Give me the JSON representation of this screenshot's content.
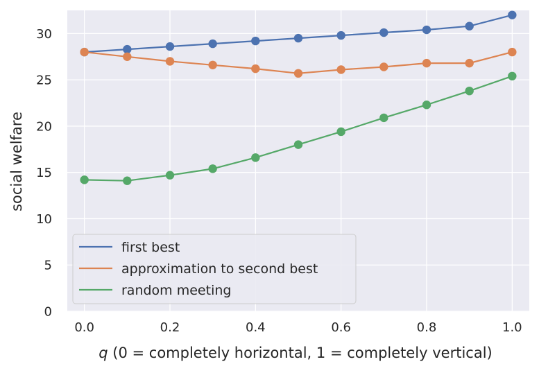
{
  "chart_data": {
    "type": "line",
    "xlabel_var": "q",
    "xlabel_rest": " (0 = completely horizontal, 1 = completely vertical)",
    "ylabel": "social welfare",
    "xlim": [
      -0.04,
      1.04
    ],
    "ylim": [
      0,
      32.5
    ],
    "xticks": [
      0.0,
      0.2,
      0.4,
      0.6,
      0.8,
      1.0
    ],
    "xtick_labels": [
      "0.0",
      "0.2",
      "0.4",
      "0.6",
      "0.8",
      "1.0"
    ],
    "yticks": [
      0,
      5,
      10,
      15,
      20,
      25,
      30
    ],
    "ytick_labels": [
      "0",
      "5",
      "10",
      "15",
      "20",
      "25",
      "30"
    ],
    "x": [
      0.0,
      0.1,
      0.2,
      0.3,
      0.4,
      0.5,
      0.6,
      0.7,
      0.8,
      0.9,
      1.0
    ],
    "grid": true,
    "legend_position": "lower-left",
    "series": [
      {
        "name": "first best",
        "color": "#4c72b0",
        "values": [
          28.0,
          28.3,
          28.6,
          28.9,
          29.2,
          29.5,
          29.8,
          30.1,
          30.4,
          30.8,
          32.0
        ]
      },
      {
        "name": "approximation to second best",
        "color": "#dd8452",
        "values": [
          28.0,
          27.5,
          27.0,
          26.6,
          26.2,
          25.7,
          26.1,
          26.4,
          26.8,
          26.8,
          28.0
        ]
      },
      {
        "name": "random meeting",
        "color": "#55a868",
        "values": [
          14.2,
          14.1,
          14.7,
          15.4,
          16.6,
          18.0,
          19.4,
          20.9,
          22.3,
          23.8,
          25.4
        ]
      }
    ]
  }
}
